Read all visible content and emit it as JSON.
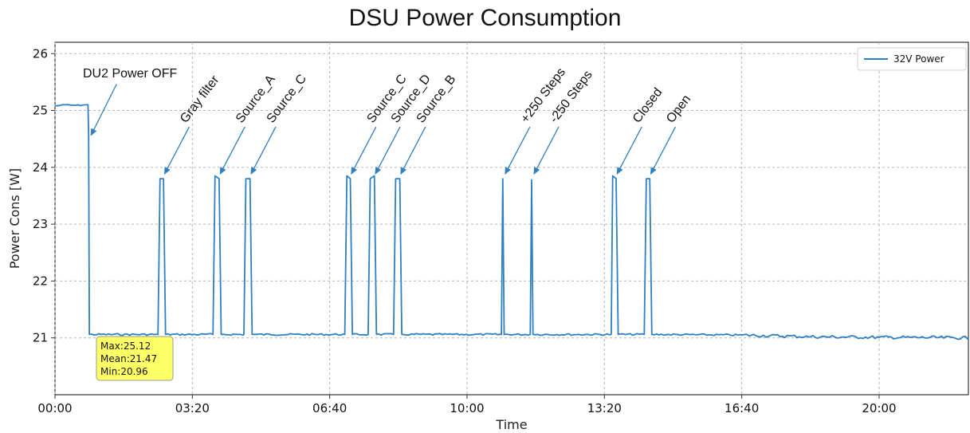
{
  "chart_data": {
    "type": "line",
    "title": "DSU Power Consumption",
    "xlabel": "Time",
    "ylabel": "Power Cons [W]",
    "xlim": [
      "00:00",
      "22:10"
    ],
    "ylim": [
      20,
      26.2
    ],
    "x_ticks": [
      "00:00",
      "03:20",
      "06:40",
      "10:00",
      "13:20",
      "16:40",
      "20:00"
    ],
    "y_ticks": [
      21,
      22,
      23,
      24,
      25,
      26
    ],
    "grid": true,
    "legend_position": "top-right",
    "line_color": "#2f7fc1",
    "series": [
      {
        "name": "32V Power",
        "points": [
          [
            "00:00",
            25.08
          ],
          [
            "00:15",
            25.1
          ],
          [
            "00:30",
            25.09
          ],
          [
            "00:48",
            25.1
          ],
          [
            "00:49",
            24.6
          ],
          [
            "00:50",
            21.06
          ],
          [
            "02:30",
            21.06
          ],
          [
            "02:33",
            23.8
          ],
          [
            "02:38",
            23.8
          ],
          [
            "02:41",
            21.06
          ],
          [
            "03:50",
            21.06
          ],
          [
            "03:53",
            23.85
          ],
          [
            "03:59",
            23.8
          ],
          [
            "04:02",
            21.06
          ],
          [
            "04:35",
            21.06
          ],
          [
            "04:38",
            23.8
          ],
          [
            "04:44",
            23.8
          ],
          [
            "04:47",
            21.06
          ],
          [
            "07:02",
            21.06
          ],
          [
            "07:05",
            23.85
          ],
          [
            "07:10",
            23.8
          ],
          [
            "07:13",
            21.06
          ],
          [
            "07:36",
            21.06
          ],
          [
            "07:39",
            23.8
          ],
          [
            "07:45",
            23.85
          ],
          [
            "07:48",
            21.06
          ],
          [
            "08:13",
            21.06
          ],
          [
            "08:16",
            23.8
          ],
          [
            "08:22",
            23.8
          ],
          [
            "08:25",
            21.06
          ],
          [
            "10:50",
            21.06
          ],
          [
            "10:52",
            23.8
          ],
          [
            "10:54",
            21.06
          ],
          [
            "11:32",
            21.06
          ],
          [
            "11:34",
            23.78
          ],
          [
            "11:36",
            21.06
          ],
          [
            "13:30",
            21.06
          ],
          [
            "13:32",
            23.85
          ],
          [
            "13:37",
            23.8
          ],
          [
            "13:40",
            21.06
          ],
          [
            "14:18",
            21.06
          ],
          [
            "14:21",
            23.8
          ],
          [
            "14:26",
            23.8
          ],
          [
            "14:29",
            21.06
          ],
          [
            "16:40",
            21.05
          ],
          [
            "18:20",
            21.02
          ],
          [
            "20:00",
            21.01
          ],
          [
            "22:10",
            21.0
          ]
        ]
      }
    ],
    "annotations": [
      {
        "text": "DU2 Power OFF",
        "x": "00:49",
        "y": 24.55
      },
      {
        "text": "Gray filter",
        "x": "02:36",
        "y": 23.87
      },
      {
        "text": "Source_A",
        "x": "03:57",
        "y": 23.87
      },
      {
        "text": "Source_C",
        "x": "04:42",
        "y": 23.87
      },
      {
        "text": "Source_C",
        "x": "07:08",
        "y": 23.87
      },
      {
        "text": "Source_D",
        "x": "07:43",
        "y": 23.87
      },
      {
        "text": "Source_B",
        "x": "08:20",
        "y": 23.87
      },
      {
        "text": "+250 Steps",
        "x": "10:52",
        "y": 23.87
      },
      {
        "text": "-250 Steps",
        "x": "11:34",
        "y": 23.87
      },
      {
        "text": "Closed",
        "x": "13:35",
        "y": 23.87
      },
      {
        "text": "Open",
        "x": "14:24",
        "y": 23.87
      }
    ],
    "stats_box": {
      "lines": [
        "Max:25.12",
        "Mean:21.47",
        "Min:20.96"
      ],
      "color": "#ffff66"
    }
  }
}
